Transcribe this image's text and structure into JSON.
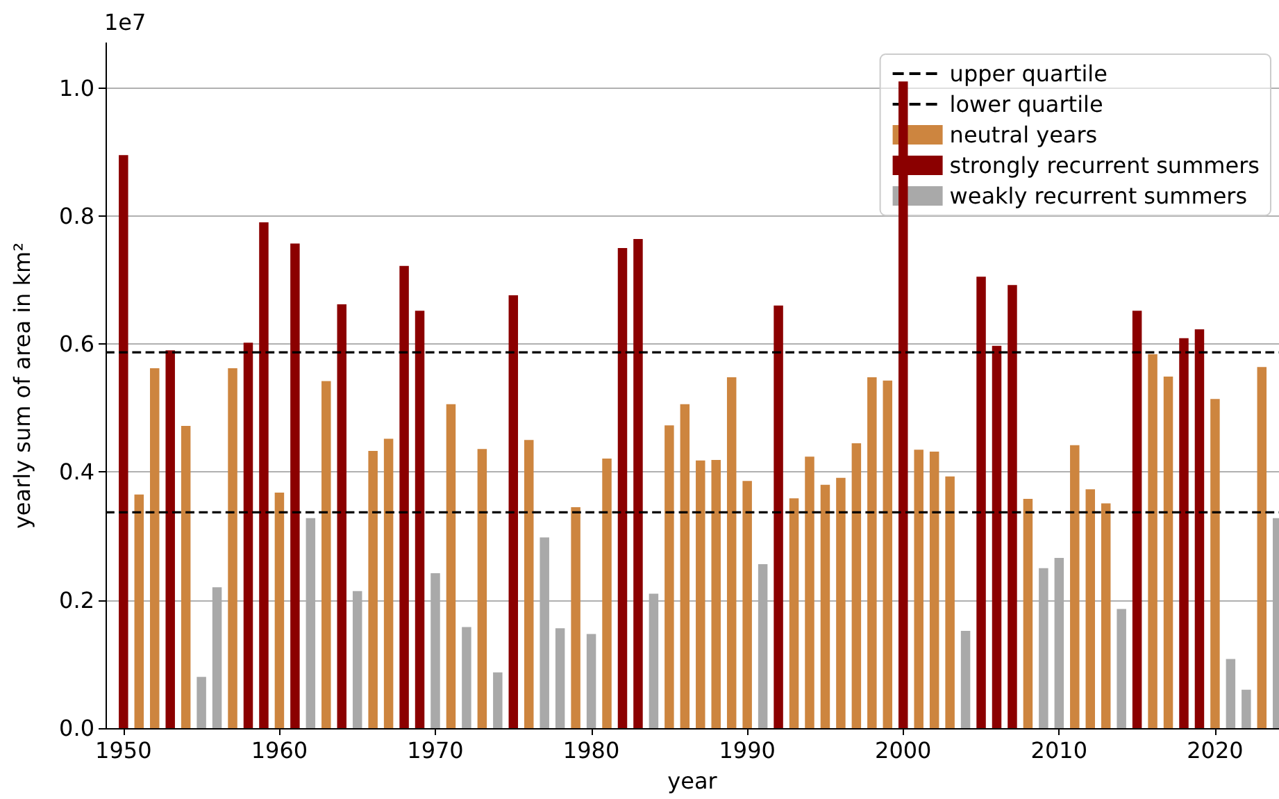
{
  "chart_data": {
    "type": "bar",
    "xlabel": "year",
    "ylabel": "yearly sum of area in km²",
    "annotations": [
      "1e7"
    ],
    "xlim": [
      1948.85,
      2024.1
    ],
    "xticks": [
      1950,
      1960,
      1970,
      1980,
      1990,
      2000,
      2010,
      2020
    ],
    "ylim": [
      0,
      1.07
    ],
    "yticks": [
      {
        "value": 0,
        "label": "0.0"
      },
      {
        "value": 0.2,
        "label": "0.2"
      },
      {
        "value": 0.4,
        "label": "0.4"
      },
      {
        "value": 0.6,
        "label": "0.6"
      },
      {
        "value": 0.8,
        "label": "0.8"
      },
      {
        "value": 1.0,
        "label": "1.0"
      }
    ],
    "grid": "y",
    "legend": "top right",
    "ref_lines": [
      {
        "axis": "y",
        "value": 0.587,
        "label": "upper quartile",
        "color": "#000000",
        "line_style": "dashed"
      },
      {
        "axis": "y",
        "value": 0.337,
        "label": "lower quartile",
        "color": "#000000",
        "line_style": "dashed"
      }
    ],
    "series": [
      {
        "name": "neutral years",
        "color": "#cd853f",
        "x": [
          1951,
          1952,
          1954,
          1957,
          1960,
          1963,
          1966,
          1967,
          1971,
          1973,
          1976,
          1979,
          1981,
          1985,
          1986,
          1987,
          1988,
          1989,
          1990,
          1993,
          1994,
          1995,
          1996,
          1997,
          1998,
          1999,
          2001,
          2002,
          2003,
          2008,
          2011,
          2012,
          2013,
          2016,
          2017,
          2020,
          2023
        ],
        "values": [
          0.365,
          0.562,
          0.472,
          0.562,
          0.368,
          0.542,
          0.433,
          0.452,
          0.506,
          0.436,
          0.45,
          0.345,
          0.421,
          0.473,
          0.506,
          0.418,
          0.419,
          0.548,
          0.386,
          0.359,
          0.424,
          0.38,
          0.391,
          0.445,
          0.548,
          0.543,
          0.435,
          0.432,
          0.393,
          0.358,
          0.442,
          0.373,
          0.351,
          0.584,
          0.549,
          0.514,
          0.564
        ]
      },
      {
        "name": "strongly recurrent summers",
        "color": "#8b0000",
        "x": [
          1950,
          1953,
          1958,
          1959,
          1961,
          1964,
          1968,
          1969,
          1975,
          1982,
          1983,
          1992,
          2000,
          2005,
          2006,
          2007,
          2015,
          2018,
          2019
        ],
        "values": [
          0.895,
          0.59,
          0.602,
          0.79,
          0.757,
          0.662,
          0.722,
          0.652,
          0.676,
          0.75,
          0.764,
          0.66,
          1.01,
          0.705,
          0.597,
          0.692,
          0.652,
          0.609,
          0.623
        ]
      },
      {
        "name": "weakly recurrent summers",
        "color": "#a9a9a9",
        "x": [
          1955,
          1956,
          1962,
          1965,
          1970,
          1972,
          1974,
          1977,
          1978,
          1980,
          1984,
          1991,
          2004,
          2009,
          2010,
          2014,
          2021,
          2022,
          2024
        ],
        "values": [
          0.08,
          0.22,
          0.328,
          0.214,
          0.242,
          0.158,
          0.087,
          0.298,
          0.156,
          0.147,
          0.21,
          0.256,
          0.152,
          0.25,
          0.266,
          0.186,
          0.108,
          0.06,
          0.328
        ]
      }
    ]
  }
}
